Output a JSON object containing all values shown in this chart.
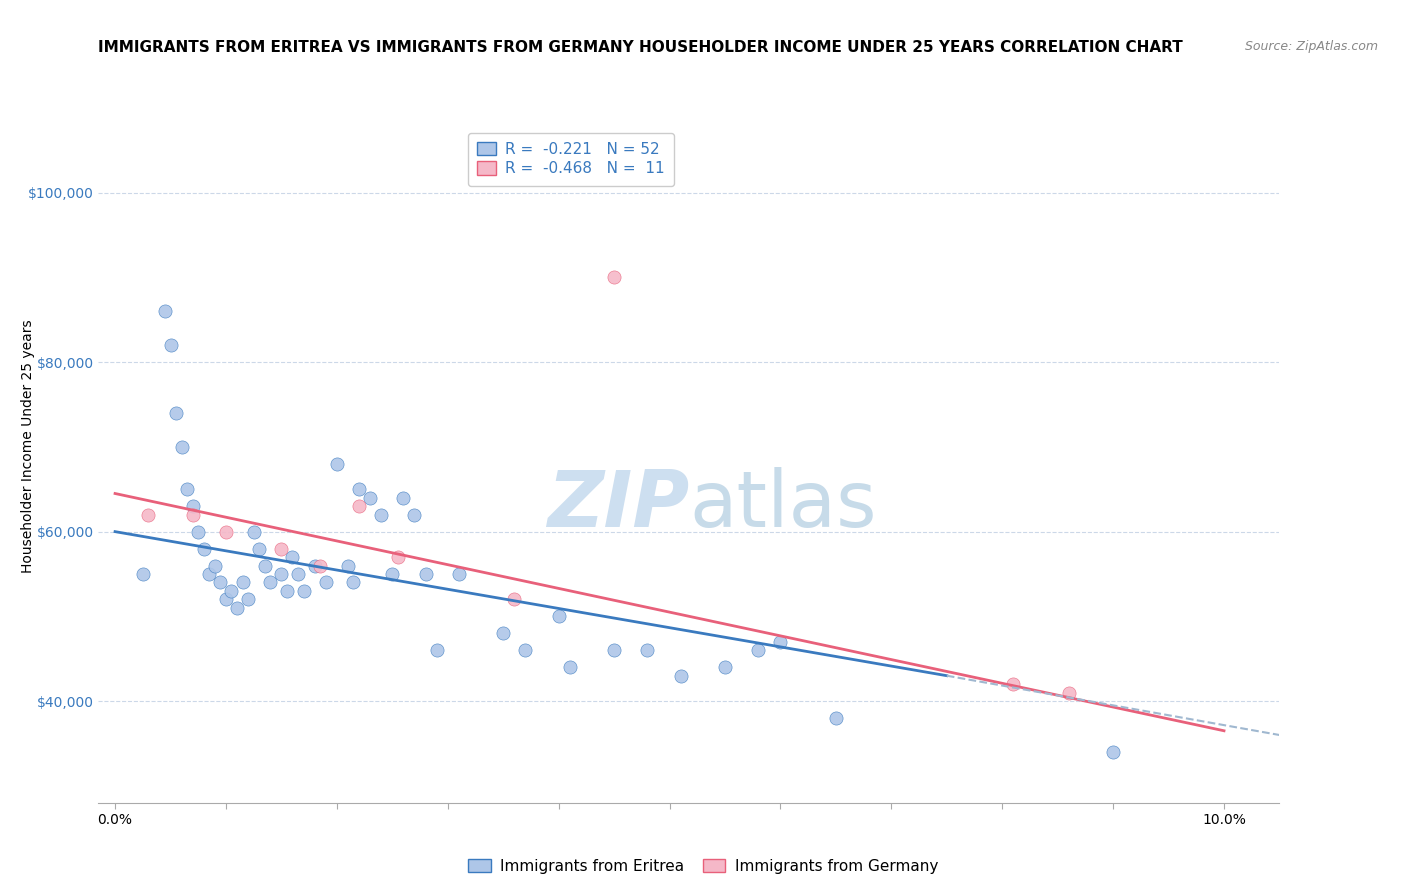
{
  "title": "IMMIGRANTS FROM ERITREA VS IMMIGRANTS FROM GERMANY HOUSEHOLDER INCOME UNDER 25 YEARS CORRELATION CHART",
  "source": "Source: ZipAtlas.com",
  "ylabel": "Householder Income Under 25 years",
  "ytick_labels": [
    "$40,000",
    "$60,000",
    "$80,000",
    "$100,000"
  ],
  "ytick_vals": [
    40000,
    60000,
    80000,
    100000
  ],
  "ylim": [
    28000,
    108000
  ],
  "xlim": [
    -0.15,
    10.5
  ],
  "eritrea_R": -0.221,
  "eritrea_N": 52,
  "germany_R": -0.468,
  "germany_N": 11,
  "eritrea_color": "#aec6e8",
  "germany_color": "#f5b8c8",
  "eritrea_line_color": "#3a7abf",
  "germany_line_color": "#e8607a",
  "dashed_line_color": "#a0b8d0",
  "watermark_zip": "ZIP",
  "watermark_atlas": "atlas",
  "legend_eritrea": "Immigrants from Eritrea",
  "legend_germany": "Immigrants from Germany",
  "eritrea_scatter_x": [
    0.25,
    0.45,
    0.5,
    0.55,
    0.6,
    0.65,
    0.7,
    0.75,
    0.8,
    0.85,
    0.9,
    0.95,
    1.0,
    1.05,
    1.1,
    1.15,
    1.2,
    1.25,
    1.3,
    1.35,
    1.4,
    1.5,
    1.55,
    1.6,
    1.65,
    1.7,
    1.8,
    1.9,
    2.0,
    2.1,
    2.15,
    2.2,
    2.3,
    2.4,
    2.5,
    2.6,
    2.7,
    2.8,
    2.9,
    3.1,
    3.5,
    3.7,
    4.0,
    4.1,
    4.5,
    4.8,
    5.1,
    5.5,
    5.8,
    6.0,
    6.5,
    9.0
  ],
  "eritrea_scatter_y": [
    55000,
    86000,
    82000,
    74000,
    70000,
    65000,
    63000,
    60000,
    58000,
    55000,
    56000,
    54000,
    52000,
    53000,
    51000,
    54000,
    52000,
    60000,
    58000,
    56000,
    54000,
    55000,
    53000,
    57000,
    55000,
    53000,
    56000,
    54000,
    68000,
    56000,
    54000,
    65000,
    64000,
    62000,
    55000,
    64000,
    62000,
    55000,
    46000,
    55000,
    48000,
    46000,
    50000,
    44000,
    46000,
    46000,
    43000,
    44000,
    46000,
    47000,
    38000,
    34000
  ],
  "germany_scatter_x": [
    0.3,
    0.7,
    1.0,
    1.5,
    1.85,
    2.2,
    2.55,
    3.6,
    4.5,
    8.1,
    8.6
  ],
  "germany_scatter_y": [
    62000,
    62000,
    60000,
    58000,
    56000,
    63000,
    57000,
    52000,
    90000,
    42000,
    41000
  ],
  "eritrea_reg_x0": 0.0,
  "eritrea_reg_y0": 60000,
  "eritrea_reg_x1": 7.5,
  "eritrea_reg_y1": 43000,
  "germany_reg_x0": 0.0,
  "germany_reg_y0": 64500,
  "germany_reg_x1": 10.0,
  "germany_reg_y1": 36500,
  "dashed_x0": 7.5,
  "dashed_y0": 43000,
  "dashed_x1": 10.5,
  "dashed_y1": 36000,
  "background_color": "#ffffff",
  "grid_color": "#ccd8e8",
  "title_fontsize": 11,
  "source_fontsize": 9,
  "axis_label_fontsize": 10,
  "tick_fontsize": 10,
  "legend_fontsize": 11
}
